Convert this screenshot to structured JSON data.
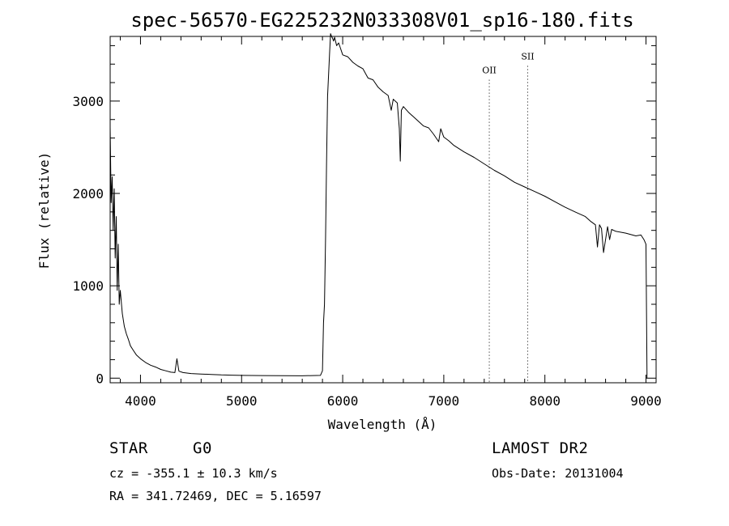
{
  "chart_data": {
    "type": "line",
    "title": "spec-56570-EG225232N033308V01_sp16-180.fits",
    "xlabel": "Wavelength (Å)",
    "ylabel": "Flux (relative)",
    "xlim": [
      3700,
      9100
    ],
    "ylim": [
      -50,
      3700
    ],
    "x_ticks": [
      4000,
      5000,
      6000,
      7000,
      8000,
      9000
    ],
    "y_ticks": [
      0,
      1000,
      2000,
      3000
    ],
    "grid": false,
    "series": [
      {
        "x": [
          3700,
          3710,
          3720,
          3730,
          3740,
          3750,
          3760,
          3770,
          3780,
          3790,
          3800,
          3820,
          3840,
          3860,
          3880,
          3900,
          3930,
          3960,
          4000,
          4050,
          4100,
          4150,
          4200,
          4250,
          4300,
          4340,
          4360,
          4380,
          4420,
          4500,
          4600,
          4700,
          4800,
          4900,
          5000,
          5200,
          5400,
          5600,
          5700,
          5780,
          5800,
          5810,
          5820,
          5830,
          5840,
          5850,
          5870,
          5880,
          5890,
          5900,
          5910,
          5920,
          5940,
          5960,
          6000,
          6050,
          6100,
          6150,
          6200,
          6250,
          6300,
          6350,
          6400,
          6450,
          6480,
          6500,
          6540,
          6560,
          6570,
          6580,
          6600,
          6650,
          6700,
          6750,
          6800,
          6850,
          6900,
          6950,
          6970,
          7000,
          7050,
          7100,
          7200,
          7300,
          7400,
          7500,
          7600,
          7700,
          7800,
          7900,
          8000,
          8100,
          8200,
          8300,
          8400,
          8450,
          8500,
          8520,
          8540,
          8560,
          8580,
          8620,
          8640,
          8660,
          8700,
          8800,
          8900,
          8950,
          8980,
          9000,
          9010
        ],
        "y": [
          2720,
          1900,
          2180,
          1600,
          2050,
          1300,
          1750,
          950,
          1450,
          800,
          950,
          700,
          560,
          480,
          420,
          350,
          300,
          250,
          210,
          170,
          140,
          120,
          95,
          80,
          65,
          60,
          210,
          75,
          60,
          50,
          45,
          40,
          35,
          32,
          30,
          28,
          26,
          25,
          28,
          30,
          80,
          600,
          800,
          1500,
          2300,
          3050,
          3500,
          3730,
          3700,
          3680,
          3650,
          3690,
          3600,
          3630,
          3500,
          3480,
          3420,
          3380,
          3350,
          3250,
          3230,
          3150,
          3100,
          3060,
          2900,
          3020,
          2980,
          2700,
          2350,
          2900,
          2940,
          2880,
          2830,
          2780,
          2730,
          2710,
          2640,
          2560,
          2700,
          2610,
          2570,
          2520,
          2450,
          2390,
          2320,
          2250,
          2190,
          2120,
          2070,
          2020,
          1970,
          1910,
          1850,
          1800,
          1750,
          1700,
          1660,
          1420,
          1660,
          1620,
          1360,
          1640,
          1500,
          1610,
          1590,
          1570,
          1540,
          1550,
          1500,
          1450,
          0
        ]
      }
    ],
    "annotations": [
      {
        "label": "OII",
        "x": 7450,
        "y": 3300
      },
      {
        "label": "SII",
        "x": 7830,
        "y": 3450
      }
    ]
  },
  "info": {
    "object_class": "STAR",
    "subclass": "G0",
    "cz": "cz = -355.1 ± 10.3 km/s",
    "radec": "RA = 341.72469, DEC =   5.16597",
    "survey": "LAMOST DR2",
    "obs_date": "Obs-Date: 20131004"
  }
}
